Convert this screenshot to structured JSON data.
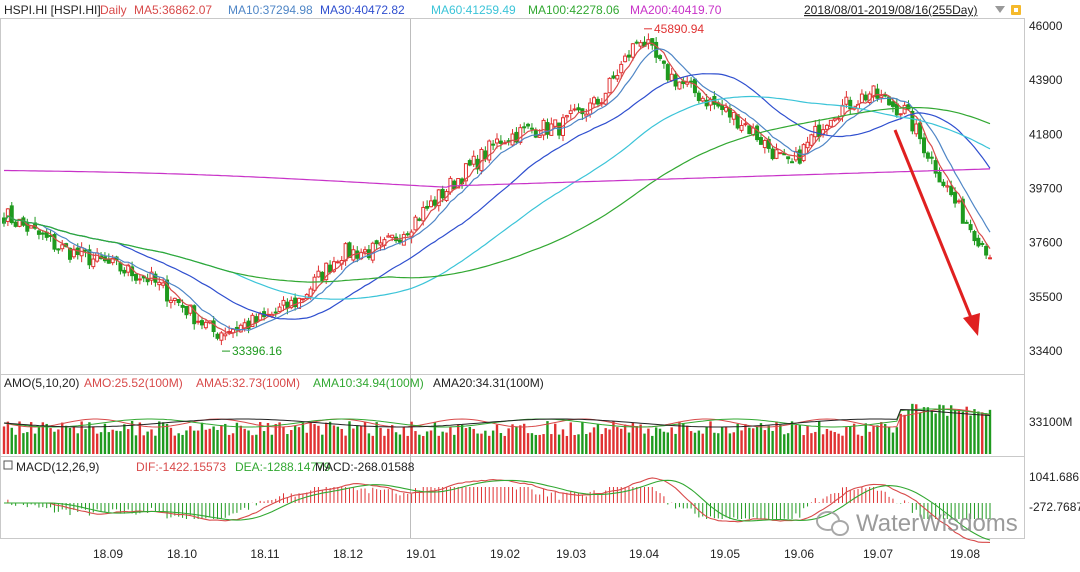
{
  "header": {
    "symbol": "HSPI.HI [HSPI.HI]",
    "period": "Daily",
    "range": "2018/08/01-2019/08/16(255Day)",
    "ma_labels": [
      {
        "text": "MA5:36862.07",
        "color": "#d84a4a"
      },
      {
        "text": "MA10:37294.98",
        "color": "#4f86c6"
      },
      {
        "text": "MA30:40472.82",
        "color": "#2f4fcf"
      },
      {
        "text": "MA60:41259.49",
        "color": "#3bc4d8"
      },
      {
        "text": "MA100:42278.06",
        "color": "#32a832"
      },
      {
        "text": "MA200:40419.70",
        "color": "#c832c8"
      }
    ],
    "icons": [
      "dropdown-triangle-icon",
      "lock-icon"
    ]
  },
  "volume_header": {
    "name": "AMO(5,10,20)",
    "items": [
      {
        "text": "AMO:25.52(100M)",
        "color": "#d84a4a"
      },
      {
        "text": "AMA5:32.73(100M)",
        "color": "#d84a4a"
      },
      {
        "text": "AMA10:34.94(100M)",
        "color": "#32a832"
      },
      {
        "text": "AMA20:34.31(100M)",
        "color": "#222222"
      }
    ]
  },
  "macd_header": {
    "name": "MACD(12,26,9)",
    "items": [
      {
        "text": "DIF:-1422.15573",
        "color": "#d84a4a"
      },
      {
        "text": "DEA:-1288.14779",
        "color": "#32a832"
      },
      {
        "text": "MACD:-268.01588",
        "color": "#222222"
      }
    ]
  },
  "watermark": "WaterWisdoms",
  "colors": {
    "up": "#e03232",
    "down": "#1f9a1f",
    "grid": "#e6e6e6",
    "ma5": "#d84a4a",
    "ma10": "#4f86c6",
    "ma30": "#2f4fcf",
    "ma60": "#3bc4d8",
    "ma100": "#32a832",
    "ma200": "#c832c8",
    "arrow": "#e02020"
  },
  "chart_data": {
    "type": "candlestick",
    "x_ticks": [
      "18.09",
      "18.10",
      "18.11",
      "18.12",
      "19.01",
      "19.02",
      "19.03",
      "19.04",
      "19.05",
      "19.06",
      "19.07",
      "19.08"
    ],
    "price_axis": {
      "ticks": [
        "46000",
        "43900",
        "41800",
        "39700",
        "37600",
        "35500",
        "33400"
      ],
      "range": [
        33000,
        46400
      ]
    },
    "annotations": [
      {
        "text": "45890.94",
        "month": "19.04",
        "value": 45890.94,
        "kind": "high"
      },
      {
        "text": "33396.16",
        "month": "18.10",
        "value": 33396.16,
        "kind": "low"
      }
    ],
    "price_anchors": [
      [
        "18.08",
        38800
      ],
      [
        "18.09",
        37400
      ],
      [
        "18.10",
        36200
      ],
      [
        "18.10b",
        34100
      ],
      [
        "18.11",
        34600
      ],
      [
        "18.11b",
        35400
      ],
      [
        "18.12",
        37200
      ],
      [
        "18.12b",
        37300
      ],
      [
        "19.01",
        38300
      ],
      [
        "19.01b",
        39800
      ],
      [
        "19.02",
        41600
      ],
      [
        "19.02b",
        42000
      ],
      [
        "19.03",
        42100
      ],
      [
        "19.03b",
        43100
      ],
      [
        "19.04",
        45600
      ],
      [
        "19.04b",
        44200
      ],
      [
        "19.05",
        43300
      ],
      [
        "19.05b",
        42200
      ],
      [
        "19.06",
        40500
      ],
      [
        "19.06b",
        42600
      ],
      [
        "19.07",
        43400
      ],
      [
        "19.07b",
        42700
      ],
      [
        "19.08",
        38800
      ],
      [
        "19.08b",
        37200
      ]
    ],
    "volume_axis": {
      "ticks": [
        "33100M"
      ]
    },
    "macd_axis": {
      "ticks": [
        "1041.686",
        "-272.7687"
      ]
    }
  }
}
